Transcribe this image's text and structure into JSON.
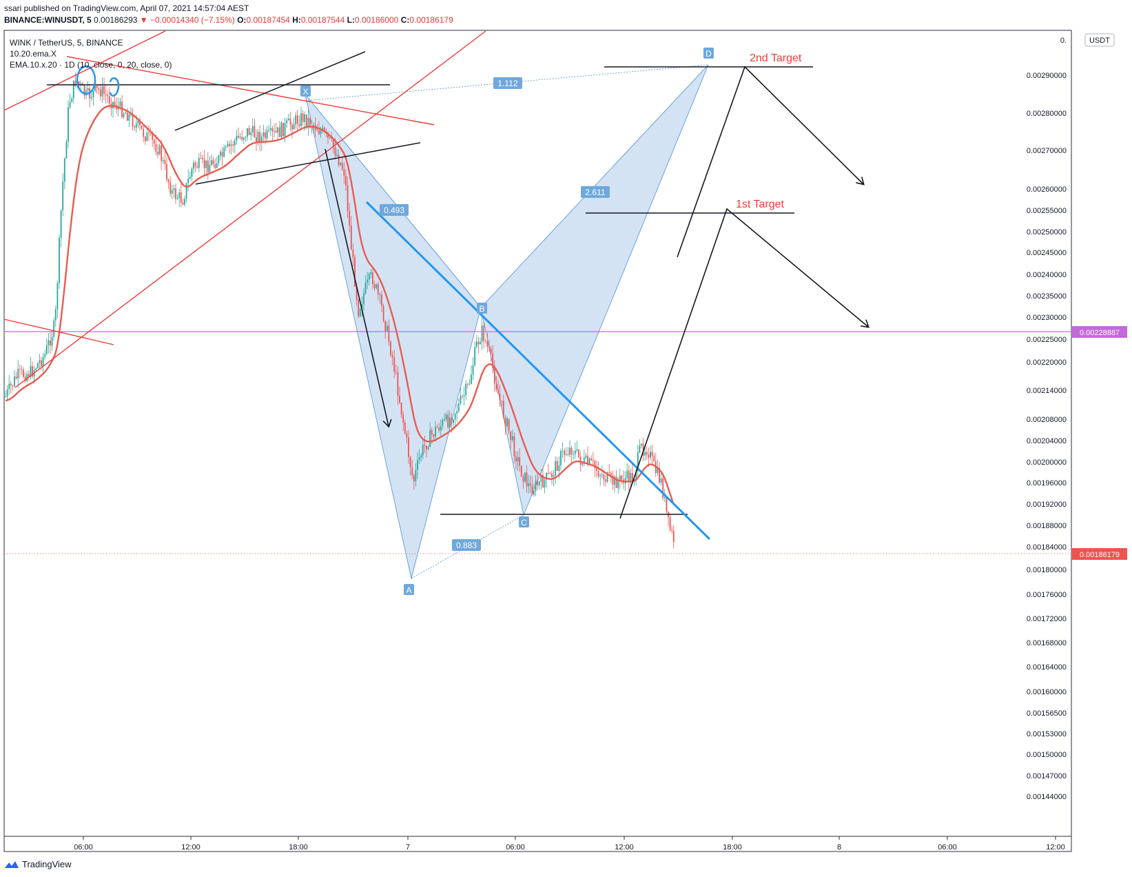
{
  "header": {
    "published": "ssari published on TradingView.com, April 07, 2021 14:57:04 AEST",
    "symbol": "BINANCE:WINUSDT, 5",
    "last": "0.00186293",
    "change": "▼ −0.00014340 (−7.15%)",
    "o_label": "O:",
    "o_value": "0.00187454",
    "h_label": "H:",
    "h_value": "0.00187544",
    "l_label": "L:",
    "l_value": "0.00186000",
    "c_label": "C:",
    "c_value": "0.00186179"
  },
  "legend": {
    "title": "WINK / TetherUS, 5, BINANCE",
    "indicator1": "10.20.ema.X",
    "indicator2": "EMA.10.x.20 · 1D (10, close, 0, 20, close, 0)"
  },
  "footer": {
    "brand": "TradingView"
  },
  "colors": {
    "up": "#26a69a",
    "down": "#ef5350",
    "ema": "#e85b4f",
    "pattern_fill": "#bcd4ee",
    "pattern_line": "#4a90d9",
    "purple": "#c26ad8",
    "red_line": "#ef3b36",
    "blue_line": "#2196f3"
  },
  "chart_data": {
    "type": "candlestick",
    "currency_badge": "USDT",
    "y_ticks": [
      "0.",
      "0.00290000",
      "0.00280000",
      "0.00270000",
      "0.00260000",
      "0.00255000",
      "0.00250000",
      "0.00245000",
      "0.00240000",
      "0.00235000",
      "0.00230000",
      "0.00225000",
      "0.00220000",
      "0.00214000",
      "0.00208000",
      "0.00204000",
      "0.00200000",
      "0.00196000",
      "0.00192000",
      "0.00188000",
      "0.00184000",
      "0.00180000",
      "0.00176000",
      "0.00172000",
      "0.00168000",
      "0.00164000",
      "0.00160000",
      "0.00156500",
      "0.00153000",
      "0.00150000",
      "0.00147000",
      "0.00144000"
    ],
    "x_ticks": [
      "06:00",
      "12:00",
      "18:00",
      "7",
      "06:00",
      "12:00",
      "18:00",
      "8",
      "06:00",
      "12:00"
    ],
    "price_tags": [
      {
        "value": "0.00228887",
        "kind": "horizontal-line"
      },
      {
        "value": "0.00186179",
        "kind": "last-price"
      }
    ],
    "pattern": {
      "points": [
        "X",
        "A",
        "B",
        "C",
        "D"
      ],
      "ratios": [
        "1.112",
        "0.493",
        "2.611",
        "0.883"
      ]
    },
    "targets": [
      "2nd Target",
      "1st Target"
    ]
  }
}
